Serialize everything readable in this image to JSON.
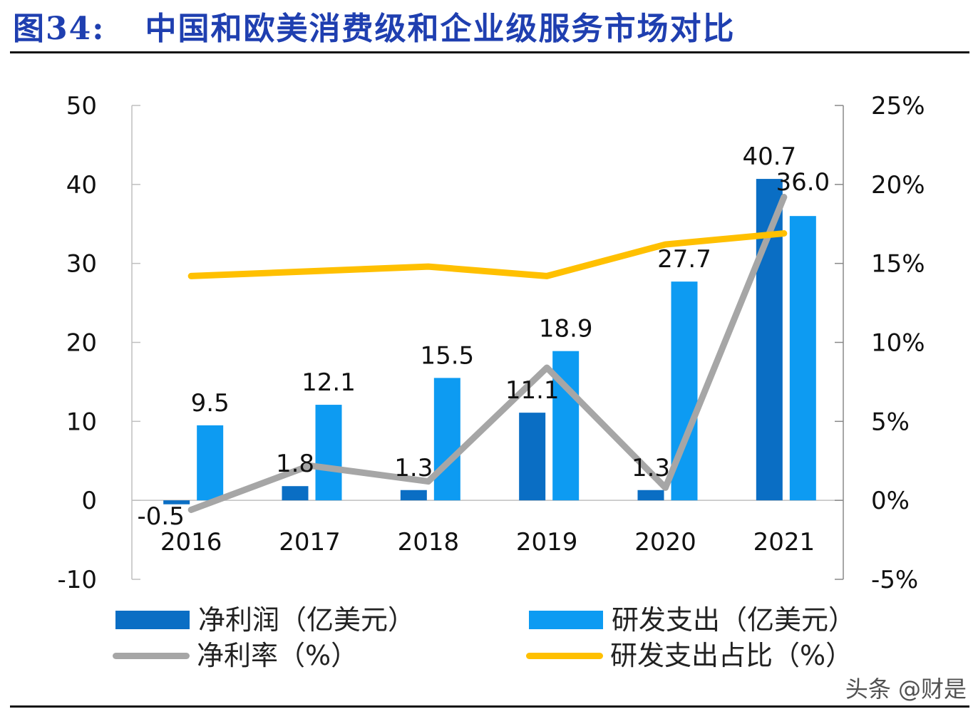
{
  "title": {
    "figure_no": "图34:",
    "text": "中国和欧美消费级和企业级服务市场对比"
  },
  "watermark": "头条 @财是",
  "colors": {
    "net_profit": "#0A6EC4",
    "rd": "#0D9BF2",
    "net_margin": "#A6A6A6",
    "rd_ratio": "#FFC000",
    "title": "#1F3FB0"
  },
  "chart_data": {
    "type": "bar+line",
    "categories": [
      "2016",
      "2017",
      "2018",
      "2019",
      "2020",
      "2021"
    ],
    "left_axis": {
      "ylim": [
        -10,
        50
      ],
      "ticks": [
        "-10",
        "0",
        "10",
        "20",
        "30",
        "40",
        "50"
      ]
    },
    "right_axis": {
      "ylim": [
        -5,
        25
      ],
      "ticks": [
        "-5%",
        "0%",
        "5%",
        "10%",
        "15%",
        "20%",
        "25%"
      ]
    },
    "series": [
      {
        "name": "净利润（亿美元）",
        "type": "bar",
        "axis": "left",
        "values": [
          -0.5,
          1.8,
          1.3,
          11.1,
          1.3,
          40.7
        ],
        "labels": [
          "-0.5",
          "1.8",
          "1.3",
          "11.1",
          "1.3",
          "40.7"
        ]
      },
      {
        "name": "研发支出（亿美元）",
        "type": "bar",
        "axis": "left",
        "values": [
          9.5,
          12.1,
          15.5,
          18.9,
          27.7,
          36.0
        ],
        "labels": [
          "9.5",
          "12.1",
          "15.5",
          "18.9",
          "27.7",
          "36.0"
        ]
      },
      {
        "name": "净利率（%）",
        "type": "line",
        "axis": "right",
        "values": [
          -0.6,
          2.2,
          1.2,
          8.4,
          0.8,
          19.2
        ]
      },
      {
        "name": "研发支出占比（%）",
        "type": "line",
        "axis": "right",
        "values": [
          14.2,
          14.5,
          14.8,
          14.2,
          16.2,
          16.9
        ]
      }
    ],
    "legend": "bottom",
    "grid": false
  }
}
